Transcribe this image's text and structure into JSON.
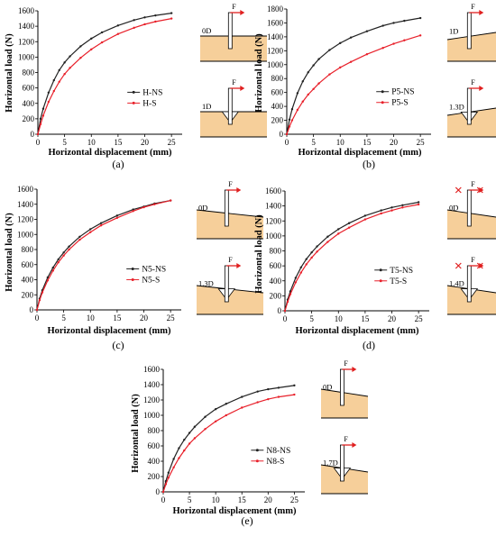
{
  "colors": {
    "ns": "#222222",
    "s": "#e8202a",
    "soil": "#f6cf9a",
    "force": "#e02020"
  },
  "chart_data": [
    {
      "type": "line",
      "caption": "(a)",
      "xlabel": "Horizontal displacement (mm)",
      "ylabel": "Horizontal load (N)",
      "xlim": [
        0,
        27
      ],
      "ylim": [
        0,
        1600
      ],
      "xticks": [
        "0",
        "5",
        "10",
        "15",
        "20",
        "25"
      ],
      "yticks": [
        "0",
        "200",
        "400",
        "600",
        "800",
        "1000",
        "1200",
        "1400",
        "1600"
      ],
      "legend_position": "lower-right",
      "series": [
        {
          "name": "H-NS",
          "key": "ns",
          "x": [
            0,
            0.5,
            1,
            2,
            3,
            4,
            5,
            6,
            8,
            10,
            12,
            15,
            18,
            20,
            22,
            25
          ],
          "values": [
            0,
            200,
            330,
            540,
            700,
            830,
            930,
            1010,
            1140,
            1240,
            1320,
            1410,
            1480,
            1515,
            1540,
            1570
          ]
        },
        {
          "name": "H-S",
          "key": "s",
          "x": [
            0,
            0.5,
            1,
            2,
            3,
            4,
            5,
            6,
            8,
            10,
            12,
            15,
            18,
            20,
            22,
            25
          ],
          "values": [
            0,
            130,
            240,
            420,
            560,
            680,
            780,
            860,
            990,
            1100,
            1190,
            1300,
            1380,
            1425,
            1460,
            1500
          ]
        }
      ],
      "schematic": {
        "top_label": "0D",
        "bottom_label": "1D",
        "force_label": "F",
        "top_slope": 0,
        "bottom_slope": 0,
        "bottom_wedge": true,
        "marks": false
      }
    },
    {
      "type": "line",
      "caption": "(b)",
      "xlabel": "Horizontal displacement (mm)",
      "ylabel": "Horizontal load (N)",
      "xlim": [
        0,
        27
      ],
      "ylim": [
        0,
        1800
      ],
      "xticks": [
        "0",
        "5",
        "10",
        "15",
        "20",
        "25"
      ],
      "yticks": [
        "0",
        "200",
        "400",
        "600",
        "800",
        "1000",
        "1200",
        "1400",
        "1600",
        "1800"
      ],
      "legend_position": "lower-right",
      "series": [
        {
          "name": "P5-NS",
          "key": "ns",
          "x": [
            0,
            0.5,
            1,
            2,
            3,
            4,
            5,
            6,
            8,
            10,
            12,
            15,
            18,
            20,
            22,
            25
          ],
          "values": [
            0,
            210,
            360,
            590,
            760,
            890,
            990,
            1080,
            1210,
            1310,
            1390,
            1480,
            1560,
            1600,
            1630,
            1670
          ]
        },
        {
          "name": "P5-S",
          "key": "s",
          "x": [
            0,
            0.5,
            1,
            2,
            3,
            4,
            5,
            6,
            8,
            10,
            12,
            15,
            18,
            20,
            22,
            25
          ],
          "values": [
            0,
            110,
            200,
            350,
            470,
            570,
            650,
            730,
            860,
            960,
            1040,
            1150,
            1240,
            1300,
            1350,
            1420
          ]
        }
      ],
      "schematic": {
        "top_label": "1D",
        "bottom_label": "1.3D",
        "force_label": "F",
        "top_slope": 1,
        "bottom_slope": 1,
        "bottom_wedge": true,
        "marks": false
      }
    },
    {
      "type": "line",
      "caption": "(c)",
      "xlabel": "Horizontal displacement (mm)",
      "ylabel": "Horizontal load (N)",
      "xlim": [
        0,
        27
      ],
      "ylim": [
        0,
        1600
      ],
      "xticks": [
        "0",
        "5",
        "10",
        "15",
        "20",
        "25"
      ],
      "yticks": [
        "0",
        "200",
        "400",
        "600",
        "800",
        "1000",
        "1200",
        "1400",
        "1600"
      ],
      "legend_position": "lower-right",
      "series": [
        {
          "name": "N5-NS",
          "key": "ns",
          "x": [
            0,
            0.5,
            1,
            2,
            3,
            4,
            5,
            6,
            8,
            10,
            12,
            15,
            18,
            20,
            22,
            25
          ],
          "values": [
            0,
            150,
            260,
            430,
            560,
            670,
            760,
            840,
            970,
            1070,
            1150,
            1250,
            1330,
            1370,
            1410,
            1450
          ]
        },
        {
          "name": "N5-S",
          "key": "s",
          "x": [
            0,
            0.5,
            1,
            2,
            3,
            4,
            5,
            6,
            8,
            10,
            12,
            15,
            18,
            20,
            22,
            25
          ],
          "values": [
            0,
            130,
            230,
            390,
            520,
            630,
            720,
            800,
            930,
            1030,
            1120,
            1220,
            1310,
            1360,
            1400,
            1450
          ]
        }
      ],
      "schematic": {
        "top_label": "0D",
        "bottom_label": "1.3D",
        "force_label": "F",
        "top_slope": -1,
        "bottom_slope": -1,
        "bottom_wedge": true,
        "marks": false
      }
    },
    {
      "type": "line",
      "caption": "(d)",
      "xlabel": "Horizontal displacement (mm)",
      "ylabel": "Horizontal load (N)",
      "xlim": [
        0,
        27
      ],
      "ylim": [
        0,
        1600
      ],
      "xticks": [
        "0",
        "5",
        "10",
        "15",
        "20",
        "25"
      ],
      "yticks": [
        "0",
        "200",
        "400",
        "600",
        "800",
        "1000",
        "1200",
        "1400",
        "1600"
      ],
      "legend_position": "lower-right",
      "series": [
        {
          "name": "T5-NS",
          "key": "ns",
          "x": [
            0,
            0.5,
            1,
            2,
            3,
            4,
            5,
            6,
            8,
            10,
            12,
            15,
            18,
            20,
            22,
            25
          ],
          "values": [
            0,
            150,
            260,
            440,
            580,
            690,
            780,
            860,
            990,
            1090,
            1170,
            1270,
            1340,
            1380,
            1410,
            1450
          ]
        },
        {
          "name": "T5-S",
          "key": "s",
          "x": [
            0,
            0.5,
            1,
            2,
            3,
            4,
            5,
            6,
            8,
            10,
            12,
            15,
            18,
            20,
            22,
            25
          ],
          "values": [
            0,
            120,
            220,
            380,
            510,
            620,
            710,
            790,
            920,
            1030,
            1110,
            1220,
            1300,
            1340,
            1380,
            1420
          ]
        }
      ],
      "schematic": {
        "top_label": "0D",
        "bottom_label": "1.4D",
        "force_label": "F",
        "top_slope": -1,
        "bottom_slope": -1,
        "bottom_wedge": true,
        "marks": true
      }
    },
    {
      "type": "line",
      "caption": "(e)",
      "xlabel": "Horizontal displacement (mm)",
      "ylabel": "Horizontal load (N)",
      "xlim": [
        0,
        27
      ],
      "ylim": [
        0,
        1600
      ],
      "xticks": [
        "0",
        "5",
        "10",
        "15",
        "20",
        "25"
      ],
      "yticks": [
        "0",
        "200",
        "400",
        "600",
        "800",
        "1000",
        "1200",
        "1400",
        "1600"
      ],
      "legend_position": "lower-right",
      "series": [
        {
          "name": "N8-NS",
          "key": "ns",
          "x": [
            0,
            0.5,
            1,
            2,
            3,
            4,
            5,
            6,
            8,
            10,
            12,
            15,
            18,
            20,
            22,
            25
          ],
          "values": [
            0,
            140,
            250,
            430,
            570,
            680,
            770,
            850,
            980,
            1080,
            1150,
            1240,
            1310,
            1340,
            1360,
            1390
          ]
        },
        {
          "name": "N8-S",
          "key": "s",
          "x": [
            0,
            0.5,
            1,
            2,
            3,
            4,
            5,
            6,
            8,
            10,
            12,
            15,
            18,
            20,
            22,
            25
          ],
          "values": [
            0,
            100,
            185,
            320,
            440,
            540,
            630,
            700,
            820,
            920,
            1000,
            1100,
            1170,
            1210,
            1240,
            1270
          ]
        }
      ],
      "schematic": {
        "top_label": "0D",
        "bottom_label": "1.7D",
        "force_label": "F",
        "top_slope": -1,
        "bottom_slope": -1,
        "bottom_wedge": true,
        "marks": false
      }
    }
  ]
}
